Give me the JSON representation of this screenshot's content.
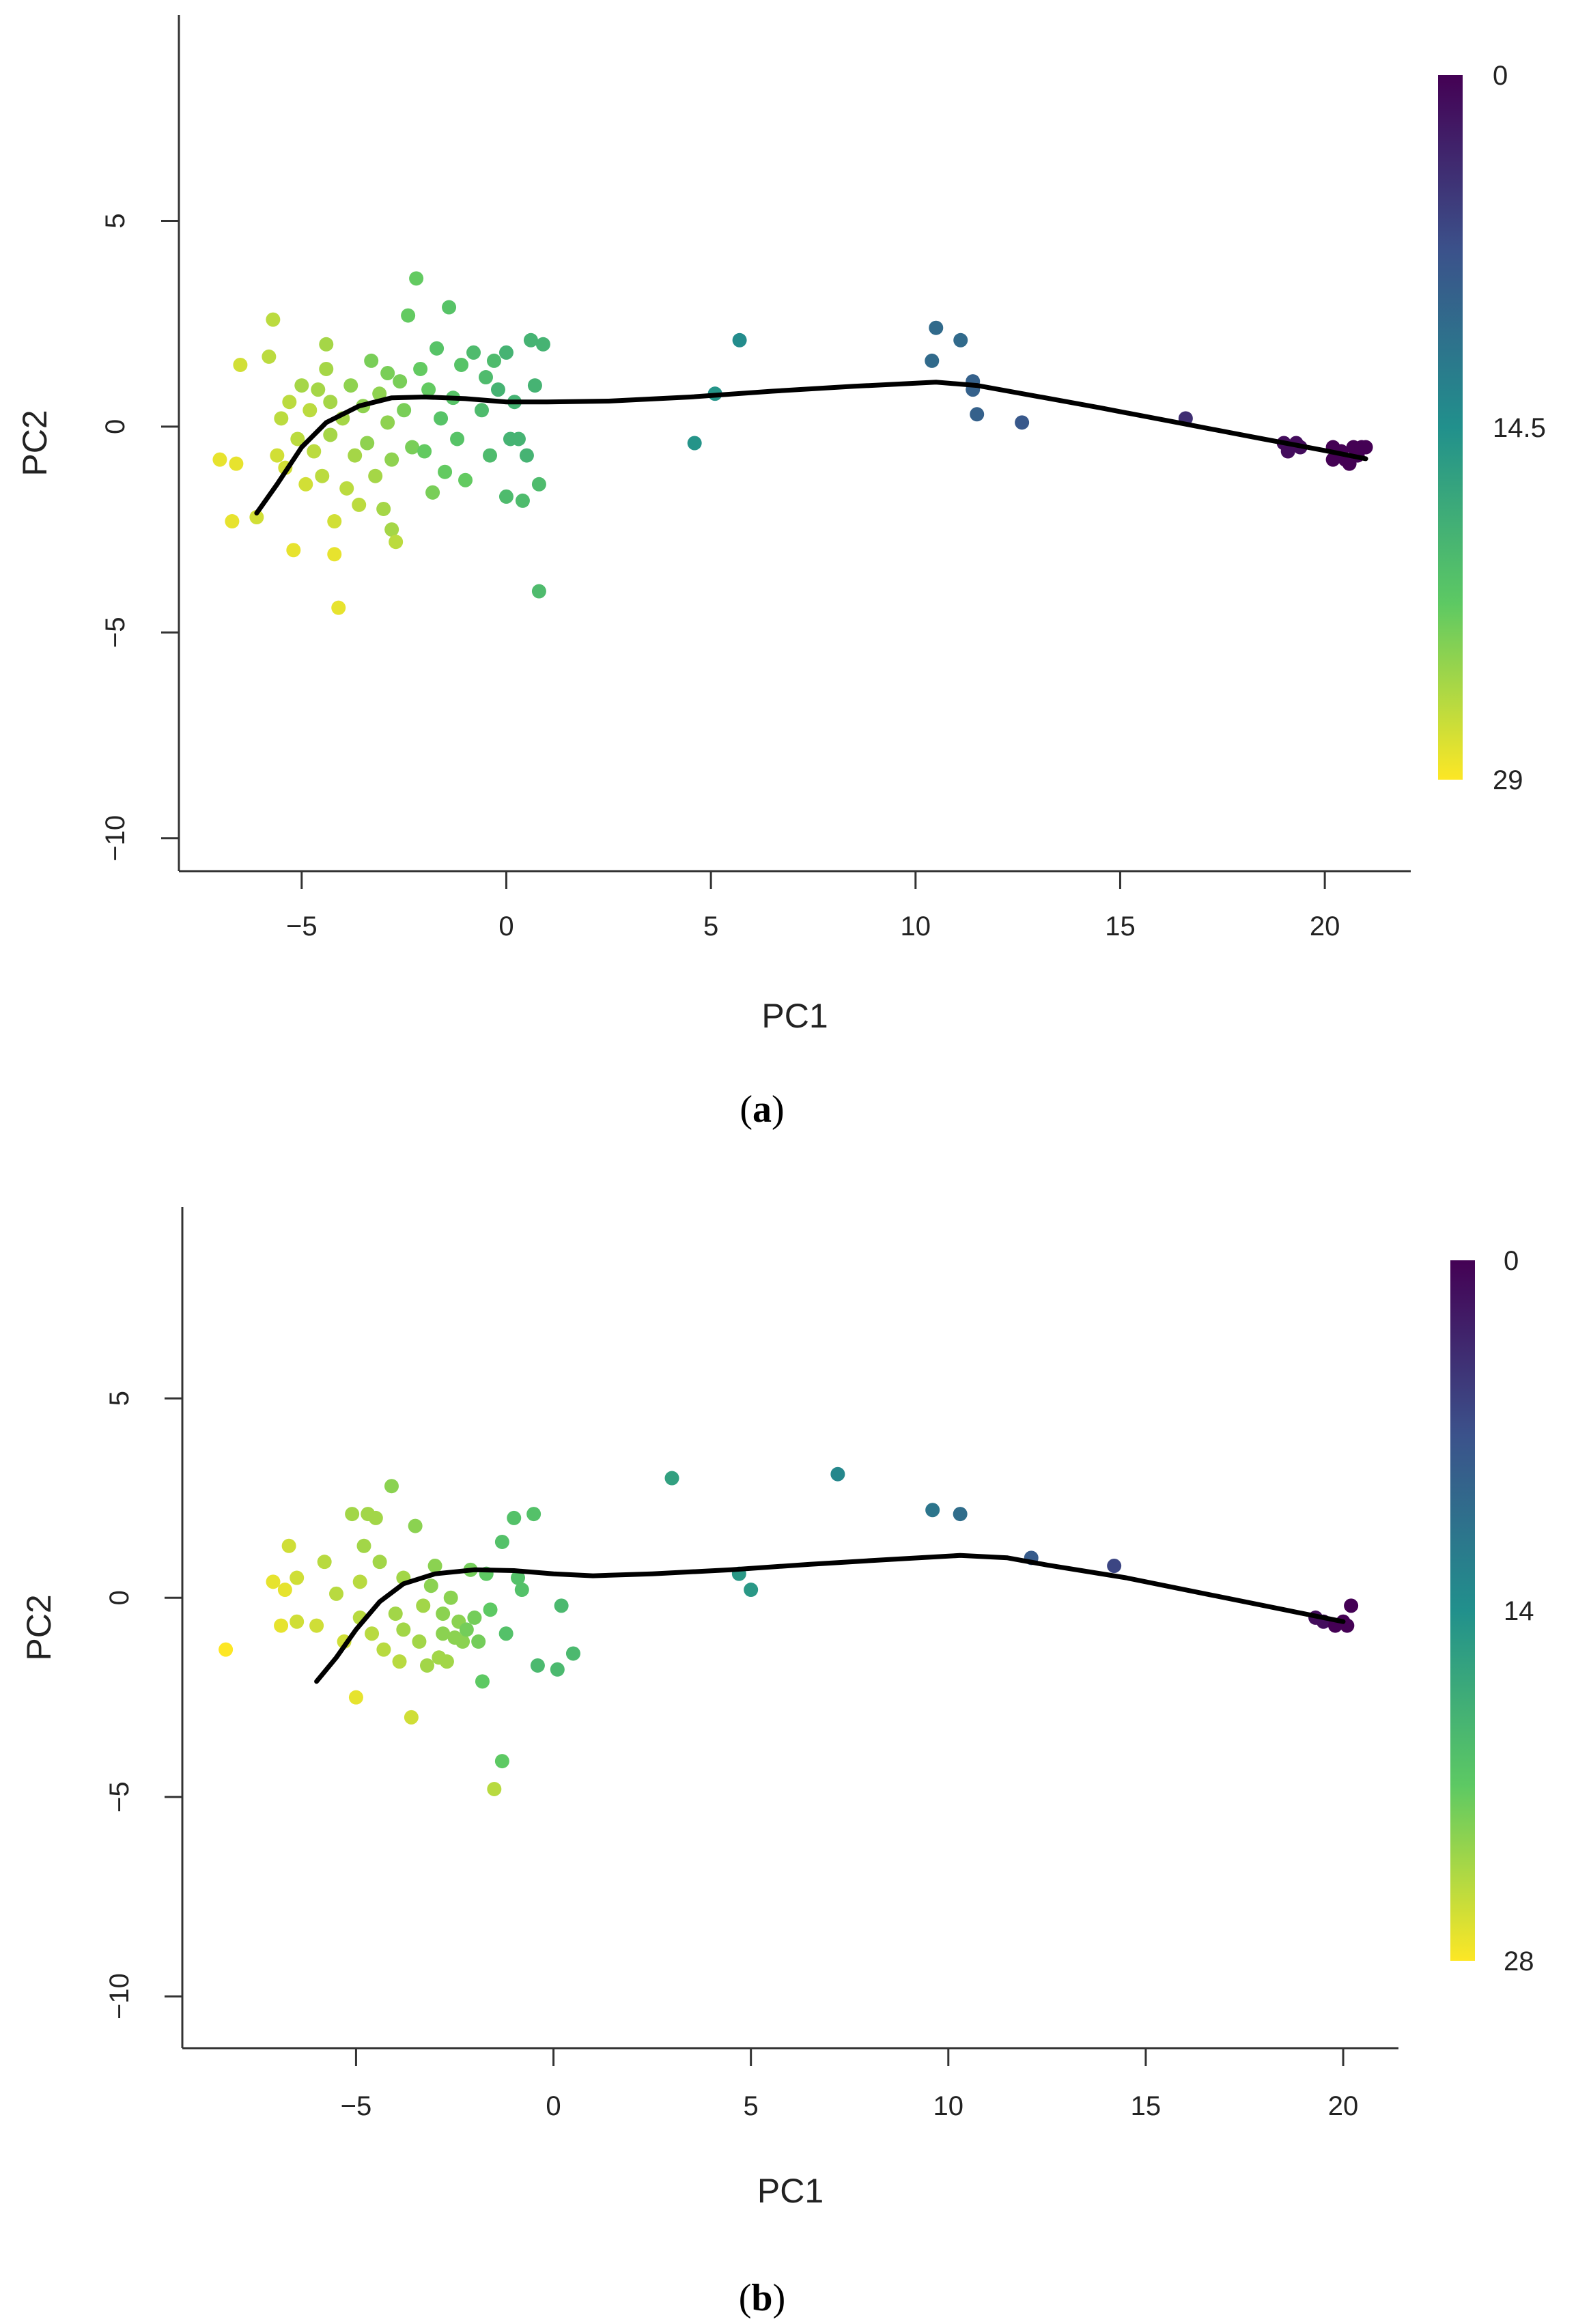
{
  "chart_data": [
    {
      "type": "scatter",
      "panel_label": "a",
      "xlabel": "PC1",
      "ylabel": "PC2",
      "xlim": [
        -8,
        22.1
      ],
      "ylim": [
        -10.8,
        10
      ],
      "x_ticks": [
        -5,
        0,
        5,
        10,
        15,
        20
      ],
      "y_ticks": [
        -10,
        -5,
        0,
        5
      ],
      "colorbar": {
        "min": 0,
        "max": 29,
        "tick_labels": [
          "0",
          "14.5",
          "29"
        ]
      },
      "curve": [
        [
          -6.1,
          -2.1
        ],
        [
          -5.6,
          -1.4
        ],
        [
          -5.0,
          -0.5
        ],
        [
          -4.4,
          0.1
        ],
        [
          -3.6,
          0.5
        ],
        [
          -2.8,
          0.7
        ],
        [
          -2.0,
          0.72
        ],
        [
          -1.0,
          0.68
        ],
        [
          0.0,
          0.6
        ],
        [
          1.0,
          0.6
        ],
        [
          2.5,
          0.62
        ],
        [
          4.5,
          0.72
        ],
        [
          6.5,
          0.86
        ],
        [
          8.5,
          0.98
        ],
        [
          10.5,
          1.08
        ],
        [
          11.5,
          1.0
        ],
        [
          12.5,
          0.82
        ],
        [
          14.5,
          0.46
        ],
        [
          16.5,
          0.08
        ],
        [
          18.5,
          -0.3
        ],
        [
          20.0,
          -0.58
        ],
        [
          21.0,
          -0.78
        ]
      ],
      "points": [
        {
          "x": -7.0,
          "y": -0.8,
          "t": 28
        },
        {
          "x": -6.7,
          "y": -2.3,
          "t": 28
        },
        {
          "x": -6.6,
          "y": -0.9,
          "t": 28
        },
        {
          "x": -6.5,
          "y": 1.5,
          "t": 27
        },
        {
          "x": -6.1,
          "y": -2.2,
          "t": 27
        },
        {
          "x": -5.8,
          "y": 1.7,
          "t": 26
        },
        {
          "x": -5.7,
          "y": 2.6,
          "t": 26
        },
        {
          "x": -5.6,
          "y": -0.7,
          "t": 27
        },
        {
          "x": -5.5,
          "y": 0.2,
          "t": 26
        },
        {
          "x": -5.4,
          "y": -1.0,
          "t": 27
        },
        {
          "x": -5.3,
          "y": 0.6,
          "t": 26
        },
        {
          "x": -5.2,
          "y": -3.0,
          "t": 28
        },
        {
          "x": -5.1,
          "y": -0.3,
          "t": 26
        },
        {
          "x": -5.0,
          "y": 1.0,
          "t": 25
        },
        {
          "x": -4.9,
          "y": -1.4,
          "t": 27
        },
        {
          "x": -4.8,
          "y": 0.4,
          "t": 26
        },
        {
          "x": -4.7,
          "y": -0.6,
          "t": 26
        },
        {
          "x": -4.6,
          "y": 0.9,
          "t": 25
        },
        {
          "x": -4.5,
          "y": -1.2,
          "t": 26
        },
        {
          "x": -4.4,
          "y": 1.4,
          "t": 25
        },
        {
          "x": -4.4,
          "y": 2.0,
          "t": 25
        },
        {
          "x": -4.3,
          "y": -0.2,
          "t": 25
        },
        {
          "x": -4.3,
          "y": 0.6,
          "t": 25
        },
        {
          "x": -4.2,
          "y": -2.3,
          "t": 27
        },
        {
          "x": -4.2,
          "y": -3.1,
          "t": 28
        },
        {
          "x": -4.1,
          "y": -4.4,
          "t": 28
        },
        {
          "x": -4.0,
          "y": 0.2,
          "t": 25
        },
        {
          "x": -3.9,
          "y": -1.5,
          "t": 26
        },
        {
          "x": -3.8,
          "y": 1.0,
          "t": 24
        },
        {
          "x": -3.7,
          "y": -0.7,
          "t": 25
        },
        {
          "x": -3.6,
          "y": -1.9,
          "t": 26
        },
        {
          "x": -3.5,
          "y": 0.5,
          "t": 24
        },
        {
          "x": -3.4,
          "y": -0.4,
          "t": 24
        },
        {
          "x": -3.3,
          "y": 1.6,
          "t": 23
        },
        {
          "x": -3.2,
          "y": -1.2,
          "t": 25
        },
        {
          "x": -3.1,
          "y": 0.8,
          "t": 24
        },
        {
          "x": -3.0,
          "y": -2.0,
          "t": 25
        },
        {
          "x": -2.9,
          "y": 1.3,
          "t": 23
        },
        {
          "x": -2.9,
          "y": 0.1,
          "t": 24
        },
        {
          "x": -2.8,
          "y": -0.8,
          "t": 24
        },
        {
          "x": -2.8,
          "y": -2.5,
          "t": 25
        },
        {
          "x": -2.7,
          "y": -2.8,
          "t": 26
        },
        {
          "x": -2.6,
          "y": 1.1,
          "t": 23
        },
        {
          "x": -2.5,
          "y": 0.4,
          "t": 23
        },
        {
          "x": -2.4,
          "y": 2.7,
          "t": 22
        },
        {
          "x": -2.3,
          "y": -0.5,
          "t": 23
        },
        {
          "x": -2.2,
          "y": 3.6,
          "t": 22
        },
        {
          "x": -2.1,
          "y": 1.4,
          "t": 22
        },
        {
          "x": -2.0,
          "y": -0.6,
          "t": 22
        },
        {
          "x": -1.9,
          "y": 0.9,
          "t": 22
        },
        {
          "x": -1.8,
          "y": -1.6,
          "t": 23
        },
        {
          "x": -1.7,
          "y": 1.9,
          "t": 21
        },
        {
          "x": -1.6,
          "y": 0.2,
          "t": 21
        },
        {
          "x": -1.5,
          "y": -1.1,
          "t": 22
        },
        {
          "x": -1.4,
          "y": 2.9,
          "t": 21
        },
        {
          "x": -1.3,
          "y": 0.7,
          "t": 21
        },
        {
          "x": -1.2,
          "y": -0.3,
          "t": 21
        },
        {
          "x": -1.1,
          "y": 1.5,
          "t": 21
        },
        {
          "x": -1.0,
          "y": -1.3,
          "t": 22
        },
        {
          "x": -0.8,
          "y": 1.8,
          "t": 20
        },
        {
          "x": -0.6,
          "y": 0.4,
          "t": 20
        },
        {
          "x": -0.5,
          "y": 1.2,
          "t": 20
        },
        {
          "x": -0.4,
          "y": -0.7,
          "t": 20
        },
        {
          "x": -0.3,
          "y": 1.6,
          "t": 20
        },
        {
          "x": -0.2,
          "y": 0.9,
          "t": 19
        },
        {
          "x": 0.0,
          "y": 1.8,
          "t": 19
        },
        {
          "x": 0.0,
          "y": -1.7,
          "t": 20
        },
        {
          "x": 0.1,
          "y": -0.3,
          "t": 19
        },
        {
          "x": 0.2,
          "y": 0.6,
          "t": 19
        },
        {
          "x": 0.3,
          "y": -0.3,
          "t": 19
        },
        {
          "x": 0.4,
          "y": -1.8,
          "t": 20
        },
        {
          "x": 0.5,
          "y": -0.7,
          "t": 19
        },
        {
          "x": 0.6,
          "y": 2.1,
          "t": 19
        },
        {
          "x": 0.7,
          "y": 1.0,
          "t": 19
        },
        {
          "x": 0.8,
          "y": -1.4,
          "t": 20
        },
        {
          "x": 0.8,
          "y": -4.0,
          "t": 20
        },
        {
          "x": 0.9,
          "y": 2.0,
          "t": 19
        },
        {
          "x": 4.6,
          "y": -0.4,
          "t": 15
        },
        {
          "x": 5.1,
          "y": 0.8,
          "t": 15
        },
        {
          "x": 5.7,
          "y": 2.1,
          "t": 14
        },
        {
          "x": 10.4,
          "y": 1.6,
          "t": 10
        },
        {
          "x": 10.5,
          "y": 2.4,
          "t": 10
        },
        {
          "x": 11.1,
          "y": 2.1,
          "t": 10
        },
        {
          "x": 11.4,
          "y": 1.1,
          "t": 9
        },
        {
          "x": 11.4,
          "y": 0.9,
          "t": 9
        },
        {
          "x": 11.5,
          "y": 0.3,
          "t": 9
        },
        {
          "x": 12.6,
          "y": 0.1,
          "t": 8
        },
        {
          "x": 16.6,
          "y": 0.2,
          "t": 4
        },
        {
          "x": 19.0,
          "y": -0.4,
          "t": 1
        },
        {
          "x": 19.1,
          "y": -0.6,
          "t": 1
        },
        {
          "x": 19.3,
          "y": -0.4,
          "t": 1
        },
        {
          "x": 19.4,
          "y": -0.5,
          "t": 1
        },
        {
          "x": 20.2,
          "y": -0.5,
          "t": 0
        },
        {
          "x": 20.2,
          "y": -0.8,
          "t": 0
        },
        {
          "x": 20.4,
          "y": -0.6,
          "t": 0
        },
        {
          "x": 20.5,
          "y": -0.8,
          "t": 0
        },
        {
          "x": 20.6,
          "y": -0.9,
          "t": 0
        },
        {
          "x": 20.7,
          "y": -0.5,
          "t": 0
        },
        {
          "x": 20.8,
          "y": -0.7,
          "t": 0
        },
        {
          "x": 20.9,
          "y": -0.5,
          "t": 0
        },
        {
          "x": 21.0,
          "y": -0.5,
          "t": 0
        }
      ]
    },
    {
      "type": "scatter",
      "panel_label": "b",
      "xlabel": "PC1",
      "ylabel": "PC2",
      "xlim": [
        -9.4,
        21.4
      ],
      "ylim": [
        -11.3,
        9.8
      ],
      "x_ticks": [
        -5,
        0,
        5,
        10,
        15,
        20
      ],
      "y_ticks": [
        -10,
        -5,
        0,
        5
      ],
      "colorbar": {
        "min": 0,
        "max": 28,
        "tick_labels": [
          "0",
          "14",
          "28"
        ]
      },
      "curve": [
        [
          -6.0,
          -2.1
        ],
        [
          -5.5,
          -1.5
        ],
        [
          -5.0,
          -0.8
        ],
        [
          -4.4,
          -0.1
        ],
        [
          -3.8,
          0.35
        ],
        [
          -3.0,
          0.6
        ],
        [
          -2.0,
          0.7
        ],
        [
          -1.0,
          0.68
        ],
        [
          0.0,
          0.6
        ],
        [
          1.0,
          0.55
        ],
        [
          2.5,
          0.6
        ],
        [
          4.5,
          0.7
        ],
        [
          6.5,
          0.84
        ],
        [
          8.5,
          0.96
        ],
        [
          10.3,
          1.06
        ],
        [
          11.5,
          1.0
        ],
        [
          12.5,
          0.82
        ],
        [
          14.5,
          0.5
        ],
        [
          16.5,
          0.1
        ],
        [
          18.5,
          -0.3
        ],
        [
          20.0,
          -0.6
        ]
      ],
      "points": [
        {
          "x": -8.3,
          "y": -1.3,
          "t": 28
        },
        {
          "x": -7.1,
          "y": 0.4,
          "t": 27
        },
        {
          "x": -6.9,
          "y": -0.7,
          "t": 27
        },
        {
          "x": -6.8,
          "y": 0.2,
          "t": 27
        },
        {
          "x": -6.7,
          "y": 1.3,
          "t": 26
        },
        {
          "x": -6.5,
          "y": 0.5,
          "t": 26
        },
        {
          "x": -6.5,
          "y": -0.6,
          "t": 26
        },
        {
          "x": -6.0,
          "y": -0.7,
          "t": 26
        },
        {
          "x": -5.8,
          "y": 0.9,
          "t": 25
        },
        {
          "x": -5.5,
          "y": 0.1,
          "t": 25
        },
        {
          "x": -5.3,
          "y": -1.1,
          "t": 26
        },
        {
          "x": -5.1,
          "y": 2.1,
          "t": 24
        },
        {
          "x": -5.0,
          "y": -2.5,
          "t": 27
        },
        {
          "x": -4.9,
          "y": 0.4,
          "t": 25
        },
        {
          "x": -4.9,
          "y": -0.5,
          "t": 25
        },
        {
          "x": -4.8,
          "y": 1.3,
          "t": 24
        },
        {
          "x": -4.7,
          "y": 2.1,
          "t": 24
        },
        {
          "x": -4.6,
          "y": -0.9,
          "t": 25
        },
        {
          "x": -4.5,
          "y": 2.0,
          "t": 24
        },
        {
          "x": -4.4,
          "y": 0.9,
          "t": 24
        },
        {
          "x": -4.3,
          "y": -1.3,
          "t": 25
        },
        {
          "x": -4.1,
          "y": 2.8,
          "t": 23
        },
        {
          "x": -4.0,
          "y": -0.4,
          "t": 24
        },
        {
          "x": -3.9,
          "y": -1.6,
          "t": 25
        },
        {
          "x": -3.8,
          "y": 0.5,
          "t": 24
        },
        {
          "x": -3.8,
          "y": -0.8,
          "t": 24
        },
        {
          "x": -3.6,
          "y": -3.0,
          "t": 26
        },
        {
          "x": -3.5,
          "y": 1.8,
          "t": 23
        },
        {
          "x": -3.4,
          "y": -1.1,
          "t": 24
        },
        {
          "x": -3.3,
          "y": -0.2,
          "t": 24
        },
        {
          "x": -3.2,
          "y": -1.7,
          "t": 24
        },
        {
          "x": -3.1,
          "y": 0.3,
          "t": 23
        },
        {
          "x": -3.0,
          "y": 0.8,
          "t": 23
        },
        {
          "x": -2.9,
          "y": -1.5,
          "t": 24
        },
        {
          "x": -2.8,
          "y": -0.9,
          "t": 23
        },
        {
          "x": -2.8,
          "y": -0.4,
          "t": 23
        },
        {
          "x": -2.7,
          "y": -1.6,
          "t": 24
        },
        {
          "x": -2.6,
          "y": 0.0,
          "t": 23
        },
        {
          "x": -2.5,
          "y": -1.0,
          "t": 23
        },
        {
          "x": -2.4,
          "y": -0.6,
          "t": 23
        },
        {
          "x": -2.3,
          "y": -1.1,
          "t": 23
        },
        {
          "x": -2.2,
          "y": -0.8,
          "t": 22
        },
        {
          "x": -2.1,
          "y": 0.7,
          "t": 22
        },
        {
          "x": -2.0,
          "y": -0.5,
          "t": 22
        },
        {
          "x": -1.9,
          "y": -1.1,
          "t": 22
        },
        {
          "x": -1.8,
          "y": -2.1,
          "t": 21
        },
        {
          "x": -1.7,
          "y": 0.6,
          "t": 21
        },
        {
          "x": -1.6,
          "y": -0.3,
          "t": 21
        },
        {
          "x": -1.5,
          "y": -4.8,
          "t": 25
        },
        {
          "x": -1.3,
          "y": 1.4,
          "t": 20
        },
        {
          "x": -1.3,
          "y": -4.1,
          "t": 21
        },
        {
          "x": -1.2,
          "y": -0.9,
          "t": 20
        },
        {
          "x": -1.0,
          "y": 2.0,
          "t": 20
        },
        {
          "x": -0.9,
          "y": 0.5,
          "t": 20
        },
        {
          "x": -0.8,
          "y": 0.2,
          "t": 20
        },
        {
          "x": -0.5,
          "y": 2.1,
          "t": 20
        },
        {
          "x": -0.4,
          "y": -1.7,
          "t": 19
        },
        {
          "x": 0.1,
          "y": -1.8,
          "t": 19
        },
        {
          "x": 0.2,
          "y": -0.2,
          "t": 19
        },
        {
          "x": 0.5,
          "y": -1.4,
          "t": 19
        },
        {
          "x": 3.0,
          "y": 3.0,
          "t": 16
        },
        {
          "x": 4.7,
          "y": 0.6,
          "t": 15
        },
        {
          "x": 5.0,
          "y": 0.2,
          "t": 15
        },
        {
          "x": 7.2,
          "y": 3.1,
          "t": 13
        },
        {
          "x": 9.6,
          "y": 2.2,
          "t": 11
        },
        {
          "x": 10.3,
          "y": 2.1,
          "t": 10
        },
        {
          "x": 12.1,
          "y": 1.0,
          "t": 8
        },
        {
          "x": 14.2,
          "y": 0.8,
          "t": 6
        },
        {
          "x": 19.3,
          "y": -0.5,
          "t": 1
        },
        {
          "x": 19.5,
          "y": -0.6,
          "t": 1
        },
        {
          "x": 19.8,
          "y": -0.7,
          "t": 0
        },
        {
          "x": 20.0,
          "y": -0.6,
          "t": 0
        },
        {
          "x": 20.1,
          "y": -0.7,
          "t": 0
        },
        {
          "x": 20.2,
          "y": -0.2,
          "t": 0
        }
      ]
    }
  ],
  "colors": {
    "gradient": [
      "#440154",
      "#3b528b",
      "#21908c",
      "#5dc963",
      "#fde725"
    ],
    "curve": "#000000",
    "axis": "#333333"
  }
}
